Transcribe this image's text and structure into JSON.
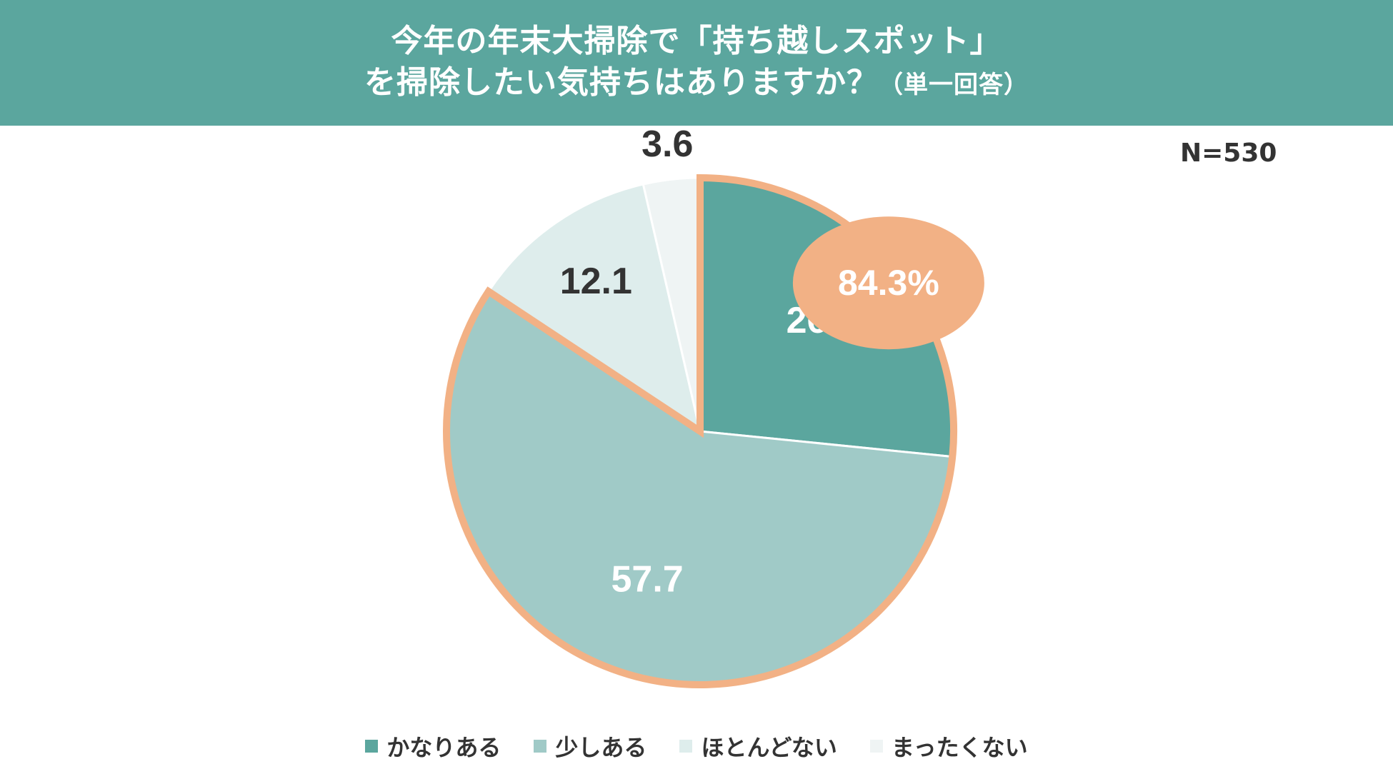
{
  "header": {
    "title_line1": "今年の年末大掃除で「持ち越しスポット」",
    "title_line2": "を掃除したい気持ちはありますか？",
    "title_note": "（単一回答）"
  },
  "sample_size": "N=530",
  "chart_data": {
    "type": "pie",
    "categories": [
      "かなりある",
      "少しある",
      "ほとんどない",
      "まったくない"
    ],
    "values": [
      26.6,
      57.7,
      12.1,
      3.6
    ],
    "value_labels": [
      "26.6",
      "57.7",
      "12.1",
      "3.6"
    ],
    "colors": [
      "#5ba69e",
      "#a0cac7",
      "#deedec",
      "#eff4f4"
    ],
    "label_colors": [
      "#ffffff",
      "#ffffff",
      "#333333",
      "#333333"
    ],
    "highlight": {
      "label": "84.3%",
      "categories": [
        "かなりある",
        "少しある"
      ],
      "color": "#f2b185"
    },
    "start_angle_deg": 0,
    "direction": "clockwise",
    "legend_position": "bottom"
  }
}
